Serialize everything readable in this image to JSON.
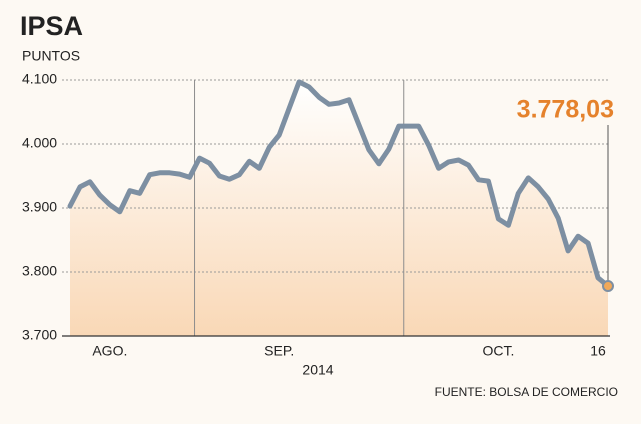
{
  "chart_data": {
    "type": "line",
    "title": "IPSA",
    "subtitle": "PUNTOS",
    "x_label": "2014",
    "source": "FUENTE: BOLSA DE COMERCIO",
    "categories": [
      null,
      null,
      null,
      null,
      "AGO.",
      null,
      null,
      null,
      null,
      null,
      null,
      null,
      null,
      null,
      null,
      null,
      null,
      null,
      null,
      null,
      null,
      "SEP.",
      null,
      null,
      null,
      null,
      null,
      null,
      null,
      null,
      null,
      null,
      null,
      null,
      null,
      null,
      null,
      null,
      null,
      null,
      null,
      null,
      null,
      "OCT.",
      null,
      null,
      null,
      null,
      null,
      null,
      null,
      null,
      null,
      "16",
      null
    ],
    "values": [
      3903,
      3933,
      3941,
      3920,
      3905,
      3894,
      3927,
      3923,
      3952,
      3955,
      3955,
      3953,
      3948,
      3978,
      3970,
      3950,
      3945,
      3952,
      3973,
      3962,
      3995,
      4014,
      4056,
      4097,
      4089,
      4073,
      4062,
      4064,
      4069,
      4030,
      3991,
      3969,
      3992,
      4028,
      4028,
      4028,
      3998,
      3962,
      3972,
      3975,
      3967,
      3944,
      3942,
      3883,
      3873,
      3923,
      3947,
      3933,
      3914,
      3884,
      3833,
      3856,
      3845,
      3791,
      3778.03
    ],
    "value_labels": [
      null,
      null,
      null,
      null,
      null,
      null,
      null,
      null,
      null,
      null,
      null,
      null,
      null,
      null,
      null,
      null,
      null,
      null,
      null,
      null,
      null,
      null,
      null,
      null,
      null,
      null,
      null,
      null,
      null,
      null,
      null,
      null,
      null,
      null,
      null,
      null,
      null,
      null,
      null,
      null,
      null,
      null,
      null,
      null,
      null,
      null,
      null,
      null,
      null,
      null,
      null,
      null,
      null,
      null,
      "3.778,03"
    ],
    "color": "#7d8fa2",
    "marker_color": "#f0a858",
    "label_color": "#e5822c",
    "ylim": [
      3700,
      4100
    ],
    "yticks": [
      {
        "value": 3700,
        "label": "3.700"
      },
      {
        "value": 3800,
        "label": "3.800"
      },
      {
        "value": 3900,
        "label": "3.900"
      },
      {
        "value": 4000,
        "label": "4.000"
      },
      {
        "value": 4100,
        "label": "4.100"
      }
    ],
    "grid": true
  }
}
